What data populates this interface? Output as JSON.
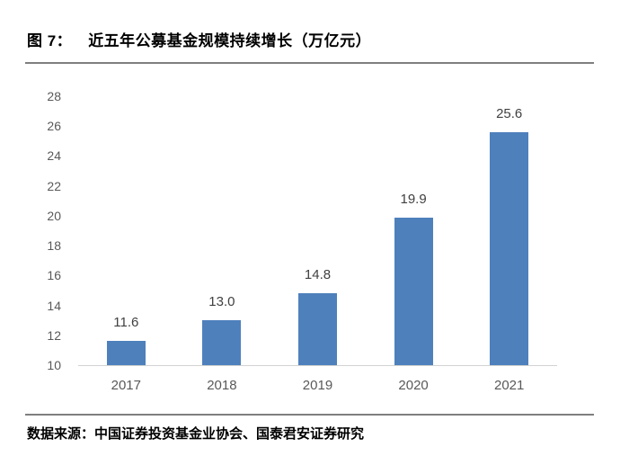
{
  "figure": {
    "label": "图 7：",
    "title": "近五年公募基金规模持续增长（万亿元）"
  },
  "source": {
    "text": "数据来源：中国证券投资基金业协会、国泰君安证券研究"
  },
  "chart_data": {
    "type": "bar",
    "title": "近五年公募基金规模持续增长（万亿元）",
    "categories": [
      "2017",
      "2018",
      "2019",
      "2020",
      "2021"
    ],
    "values": [
      11.6,
      13.0,
      14.8,
      19.9,
      25.6
    ],
    "value_labels": [
      "11.6",
      "13.0",
      "14.8",
      "19.9",
      "25.6"
    ],
    "xlabel": "",
    "ylabel": "",
    "ylim": [
      10,
      28
    ],
    "yticks": [
      28,
      26,
      24,
      22,
      20,
      18,
      16,
      14,
      12,
      10
    ],
    "grid": false,
    "legend": "none",
    "bar_color": "#4e80bc",
    "axis_line_color": "#d2d2d2",
    "tick_label_color": "#595959",
    "data_label_color": "#404040",
    "plot_background": "#ffffff"
  }
}
